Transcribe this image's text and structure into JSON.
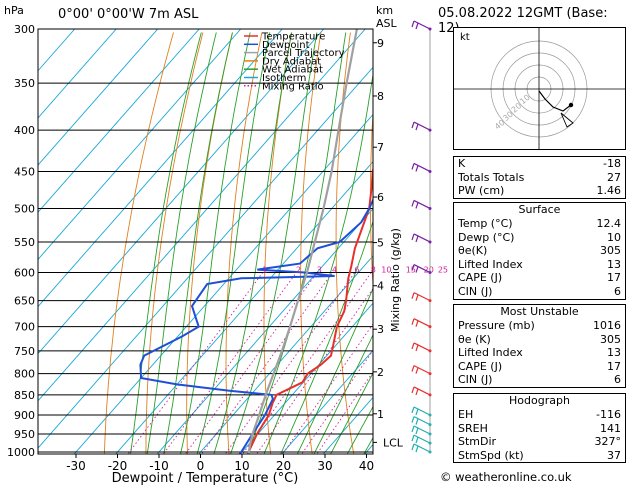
{
  "header": {
    "location": "0°00' 0°00'W 7m ASL",
    "datetime": "05.08.2022 12GMT (Base: 12)",
    "pressure_unit": "hPa",
    "height_unit_km": "km",
    "height_unit_asl": "ASL"
  },
  "chart_data": {
    "type": "line",
    "chart_kind": "skew-T log-P diagram",
    "xlabel": "Dewpoint / Temperature (°C)",
    "ylabel_left": "hPa",
    "ylabel_right": "Mixing Ratio (g/kg)",
    "x_ticks": [
      -30,
      -20,
      -10,
      0,
      10,
      20,
      30,
      40
    ],
    "xlim": [
      -35,
      40
    ],
    "y_ticks": [
      300,
      350,
      400,
      450,
      500,
      550,
      600,
      650,
      700,
      750,
      800,
      850,
      900,
      950,
      1000
    ],
    "ylim": [
      1013,
      300
    ],
    "y_scale": "log",
    "height_km_ticks": [
      {
        "km": "9",
        "p": 312
      },
      {
        "km": "8",
        "p": 363
      },
      {
        "km": "7",
        "p": 420
      },
      {
        "km": "6",
        "p": 484
      },
      {
        "km": "5",
        "p": 551
      },
      {
        "km": "4",
        "p": 623
      },
      {
        "km": "3",
        "p": 705
      },
      {
        "km": "2",
        "p": 796
      },
      {
        "km": "1",
        "p": 897
      }
    ],
    "lcl": {
      "label": "LCL",
      "p": 973
    },
    "mixing_ratio_labels": [
      "1",
      "2",
      "3",
      "4",
      "6",
      "8",
      "10",
      "15",
      "20",
      "25"
    ],
    "mixing_ratio_label_p": 595,
    "legend": {
      "placement": "top-left",
      "entries": [
        {
          "name": "Temperature",
          "color": "#e8302a",
          "style": "solid"
        },
        {
          "name": "Dewpoint",
          "color": "#1f4fd6",
          "style": "solid"
        },
        {
          "name": "Parcel Trajectory",
          "color": "#a0a0a0",
          "style": "solid"
        },
        {
          "name": "Dry Adiabat",
          "color": "#e08020",
          "style": "solid"
        },
        {
          "name": "Wet Adiabat",
          "color": "#2aa02a",
          "style": "solid"
        },
        {
          "name": "Isotherm",
          "color": "#18a8d8",
          "style": "solid"
        },
        {
          "name": "Mixing Ratio",
          "color": "#d0209a",
          "style": "dotted"
        }
      ]
    },
    "series": [
      {
        "name": "Temperature",
        "color": "#e8302a",
        "points": [
          [
            1013,
            12.4
          ],
          [
            1000,
            11.6
          ],
          [
            950,
            9.8
          ],
          [
            900,
            8.6
          ],
          [
            870,
            7.0
          ],
          [
            850,
            6.2
          ],
          [
            820,
            9.8
          ],
          [
            800,
            9.2
          ],
          [
            780,
            10.5
          ],
          [
            760,
            11.0
          ],
          [
            740,
            9.5
          ],
          [
            700,
            6.3
          ],
          [
            670,
            4.8
          ],
          [
            650,
            3.0
          ],
          [
            610,
            -1.2
          ],
          [
            590,
            -3.0
          ],
          [
            560,
            -6.0
          ],
          [
            500,
            -11.0
          ],
          [
            470,
            -15.0
          ],
          [
            450,
            -18.0
          ],
          [
            400,
            -24.0
          ],
          [
            360,
            -31.0
          ],
          [
            330,
            -36.0
          ],
          [
            300,
            -42.0
          ]
        ]
      },
      {
        "name": "Dewpoint",
        "color": "#1f4fd6",
        "points": [
          [
            1013,
            10.0
          ],
          [
            1000,
            9.8
          ],
          [
            950,
            8.7
          ],
          [
            900,
            7.7
          ],
          [
            860,
            6.2
          ],
          [
            850,
            5.0
          ],
          [
            840,
            -6.0
          ],
          [
            825,
            -20.0
          ],
          [
            810,
            -30.0
          ],
          [
            780,
            -33.0
          ],
          [
            760,
            -34.0
          ],
          [
            720,
            -29.0
          ],
          [
            700,
            -27.0
          ],
          [
            660,
            -33.0
          ],
          [
            620,
            -34.0
          ],
          [
            610,
            -27.0
          ],
          [
            606,
            -5.0
          ],
          [
            600,
            -13.0
          ],
          [
            595,
            -25.0
          ],
          [
            585,
            -16.0
          ],
          [
            560,
            -15.0
          ],
          [
            550,
            -11.0
          ],
          [
            520,
            -10.0
          ],
          [
            500,
            -11.0
          ],
          [
            460,
            -14.0
          ],
          [
            440,
            -16.0
          ],
          [
            400,
            -24.0
          ],
          [
            380,
            -28.0
          ],
          [
            370,
            -32.0
          ],
          [
            340,
            -36.0
          ],
          [
            320,
            -42.0
          ],
          [
            305,
            -46.0
          ],
          [
            300,
            -48.0
          ]
        ]
      },
      {
        "name": "Parcel Trajectory",
        "color": "#a0a0a0",
        "points": [
          [
            1013,
            12.4
          ],
          [
            973,
            10.0
          ],
          [
            950,
            8.7
          ],
          [
            900,
            6.3
          ],
          [
            850,
            3.6
          ],
          [
            800,
            1.0
          ],
          [
            750,
            -1.8
          ],
          [
            700,
            -5.0
          ],
          [
            650,
            -8.6
          ],
          [
            600,
            -12.4
          ],
          [
            550,
            -17.0
          ],
          [
            500,
            -22.0
          ],
          [
            450,
            -27.9
          ],
          [
            400,
            -35.0
          ],
          [
            350,
            -43.0
          ],
          [
            300,
            -52.0
          ]
        ]
      }
    ],
    "wind_barbs_p": [
      1000,
      975,
      950,
      925,
      900,
      850,
      800,
      750,
      700,
      650,
      600,
      550,
      500,
      450,
      400,
      300
    ],
    "hodograph": {
      "unit": "kt",
      "ring_labels": [
        "10",
        "20",
        "30",
        "40"
      ]
    }
  },
  "indices": {
    "rows": [
      {
        "label": "K",
        "value": "-18"
      },
      {
        "label": "Totals Totals",
        "value": "27"
      },
      {
        "label": "PW (cm)",
        "value": "1.46"
      }
    ]
  },
  "surface": {
    "title": "Surface",
    "rows": [
      {
        "label": "Temp (°C)",
        "value": "12.4"
      },
      {
        "label": "Dewp (°C)",
        "value": "10"
      },
      {
        "label": "θe(K)",
        "value": "305"
      },
      {
        "label": "Lifted Index",
        "value": "13"
      },
      {
        "label": "CAPE (J)",
        "value": "17"
      },
      {
        "label": "CIN (J)",
        "value": "6"
      }
    ]
  },
  "most_unstable": {
    "title": "Most Unstable",
    "rows": [
      {
        "label": "Pressure (mb)",
        "value": "1016"
      },
      {
        "label": "θe (K)",
        "value": "305"
      },
      {
        "label": "Lifted Index",
        "value": "13"
      },
      {
        "label": "CAPE (J)",
        "value": "17"
      },
      {
        "label": "CIN (J)",
        "value": "6"
      }
    ]
  },
  "hodograph_table": {
    "title": "Hodograph",
    "rows": [
      {
        "label": "EH",
        "value": "-116"
      },
      {
        "label": "SREH",
        "value": "141"
      },
      {
        "label": "StmDir",
        "value": "327°"
      },
      {
        "label": "StmSpd (kt)",
        "value": "37"
      }
    ]
  },
  "footer": "© weatheronline.co.uk"
}
